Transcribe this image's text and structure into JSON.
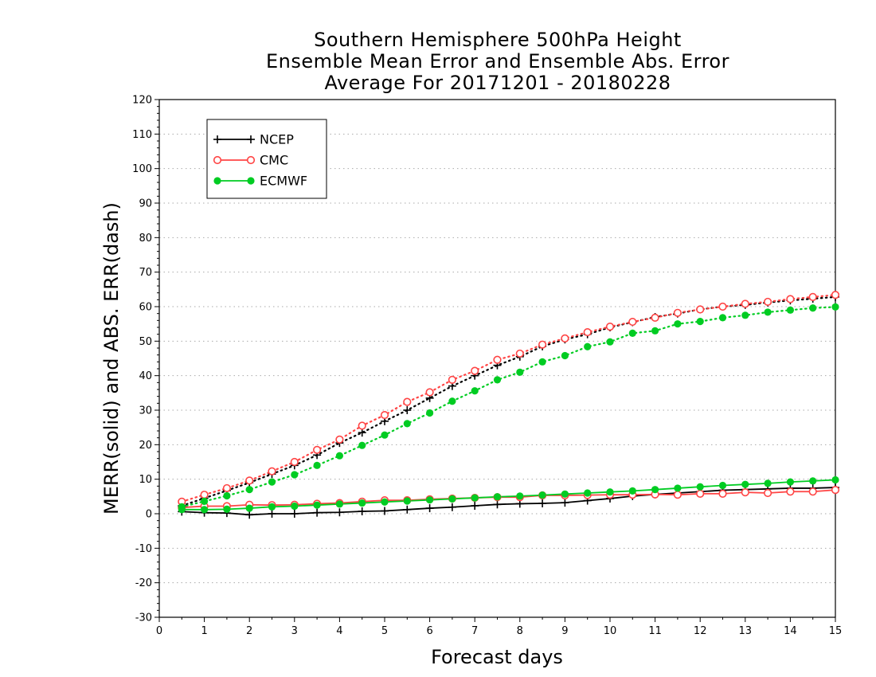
{
  "chart_data": {
    "type": "line",
    "title": [
      "Southern Hemisphere 500hPa Height",
      "Ensemble Mean Error and Ensemble Abs. Error",
      "Average For 20171201 - 20180228"
    ],
    "xlabel": "Forecast days",
    "ylabel": "MERR(solid) and ABS. ERR(dash)",
    "xlim": [
      0,
      15
    ],
    "ylim": [
      -30,
      120
    ],
    "xticks": [
      "0",
      "1",
      "2",
      "3",
      "4",
      "5",
      "6",
      "7",
      "8",
      "9",
      "10",
      "11",
      "12",
      "13",
      "14",
      "15"
    ],
    "yticks": [
      "-30",
      "-20",
      "-10",
      "0",
      "10",
      "20",
      "30",
      "40",
      "50",
      "60",
      "70",
      "80",
      "90",
      "100",
      "110",
      "120"
    ],
    "grid": true,
    "legend_position": "top-left",
    "x": [
      0.5,
      1,
      1.5,
      2,
      2.5,
      3,
      3.5,
      4,
      4.5,
      5,
      5.5,
      6,
      6.5,
      7,
      7.5,
      8,
      8.5,
      9,
      9.5,
      10,
      10.5,
      11,
      11.5,
      12,
      12.5,
      13,
      13.5,
      14,
      14.5,
      15
    ],
    "series": [
      {
        "name": "NCEP",
        "color": "#000000",
        "marker": "plus",
        "style": "solid",
        "values": [
          0.6,
          0.3,
          0.2,
          -0.3,
          0,
          0,
          0.3,
          0.4,
          0.7,
          0.8,
          1.2,
          1.6,
          1.9,
          2.3,
          2.7,
          2.9,
          3.0,
          3.2,
          3.8,
          4.4,
          5.1,
          5.6,
          6.0,
          6.4,
          6.8,
          7.0,
          7.2,
          7.4,
          7.4,
          7.6
        ]
      },
      {
        "name": "CMC",
        "color": "#ff4444",
        "marker": "open-circle",
        "style": "solid",
        "values": [
          1.8,
          2.2,
          2.2,
          2.6,
          2.5,
          2.6,
          2.9,
          3.1,
          3.5,
          3.9,
          3.9,
          4.2,
          4.4,
          4.6,
          4.8,
          4.8,
          5.3,
          5.3,
          5.4,
          5.5,
          5.5,
          5.6,
          5.5,
          5.8,
          5.8,
          6.2,
          6.0,
          6.4,
          6.4,
          6.9
        ]
      },
      {
        "name": "ECMWF",
        "color": "#00cc22",
        "marker": "filled-circle",
        "style": "solid",
        "values": [
          1.2,
          1.2,
          1.3,
          1.6,
          2.0,
          2.2,
          2.5,
          2.8,
          3.1,
          3.4,
          3.7,
          4.0,
          4.3,
          4.6,
          4.9,
          5.1,
          5.4,
          5.7,
          6.0,
          6.3,
          6.6,
          7.0,
          7.4,
          7.8,
          8.2,
          8.5,
          8.8,
          9.2,
          9.5,
          9.8
        ]
      },
      {
        "name": "NCEP",
        "color": "#000000",
        "marker": "plus",
        "style": "dotted",
        "values": [
          2.3,
          4.5,
          6.7,
          9.0,
          11.5,
          14.0,
          17.0,
          20.5,
          23.5,
          26.8,
          30.0,
          33.5,
          37.0,
          40.0,
          43.0,
          45.5,
          48.5,
          50.5,
          52.0,
          54.0,
          55.5,
          57.0,
          58.0,
          59.2,
          60.0,
          60.5,
          61.2,
          61.8,
          62.3,
          62.8
        ]
      },
      {
        "name": "CMC",
        "color": "#ff4444",
        "marker": "open-circle",
        "style": "dotted",
        "values": [
          3.5,
          5.5,
          7.4,
          9.6,
          12.3,
          15.0,
          18.5,
          21.5,
          25.5,
          28.6,
          32.4,
          35.2,
          38.8,
          41.4,
          44.6,
          46.4,
          49.0,
          50.8,
          52.6,
          54.2,
          55.6,
          56.8,
          58.2,
          59.2,
          60.0,
          60.8,
          61.4,
          62.2,
          62.8,
          63.4
        ]
      },
      {
        "name": "ECMWF",
        "color": "#00cc22",
        "marker": "filled-circle",
        "style": "dotted",
        "values": [
          2.0,
          3.6,
          5.2,
          7.0,
          9.2,
          11.3,
          14.0,
          16.8,
          19.8,
          22.8,
          26.1,
          29.2,
          32.6,
          35.6,
          38.8,
          41.0,
          44.0,
          45.8,
          48.4,
          49.8,
          52.3,
          53.0,
          55.0,
          55.7,
          56.8,
          57.5,
          58.4,
          59.0,
          59.6,
          59.9
        ]
      }
    ]
  }
}
